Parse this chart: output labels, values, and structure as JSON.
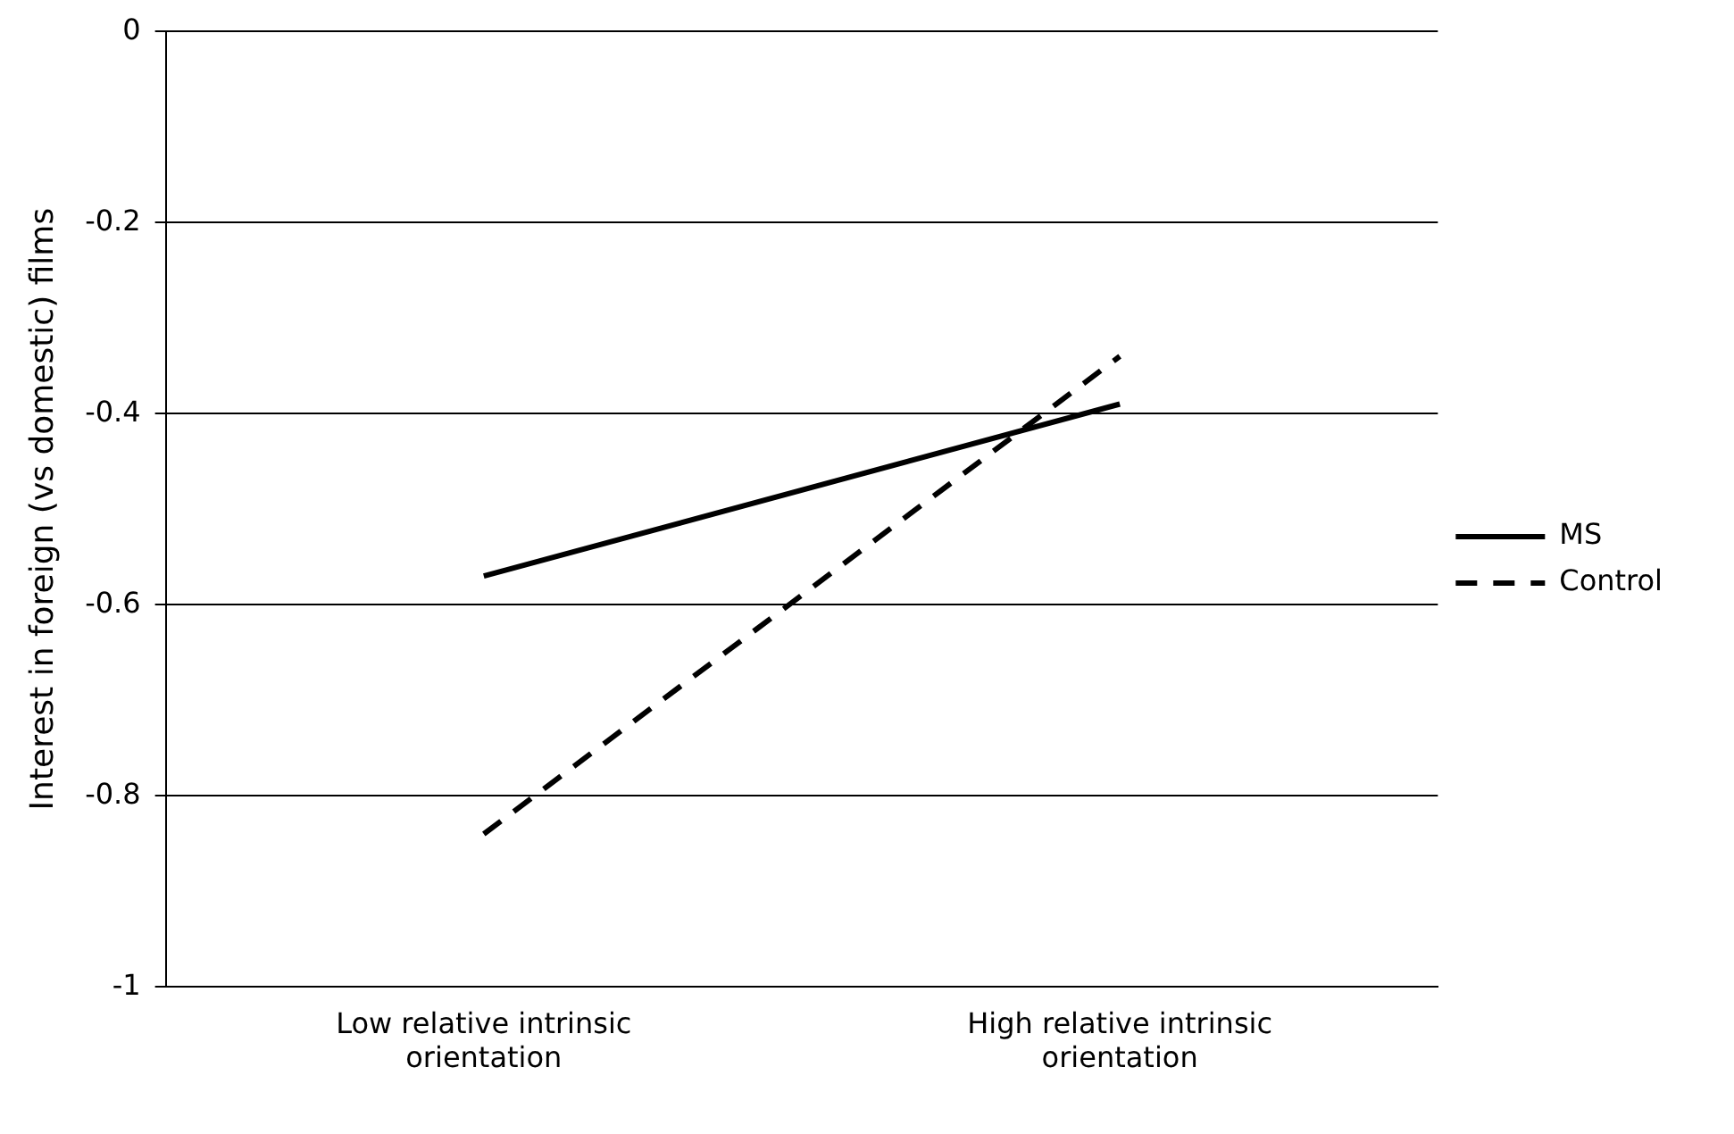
{
  "chart_data": {
    "type": "line",
    "ylabel": "Interest in foreign (vs domestic) films",
    "categories": [
      "Low relative intrinsic orientation",
      "High relative intrinsic orientation"
    ],
    "series": [
      {
        "name": "MS",
        "color": "#000000",
        "values": [
          -0.57,
          -0.39
        ],
        "line_style": "solid"
      },
      {
        "name": "Control",
        "color": "#000000",
        "values": [
          -0.84,
          -0.34
        ],
        "line_style": "dashed"
      }
    ],
    "ylim": [
      -1,
      0
    ],
    "yticks": [
      -1,
      -0.8,
      -0.6,
      -0.4,
      -0.2,
      0
    ],
    "grid": "y",
    "legend": "right",
    "marker": "none"
  }
}
